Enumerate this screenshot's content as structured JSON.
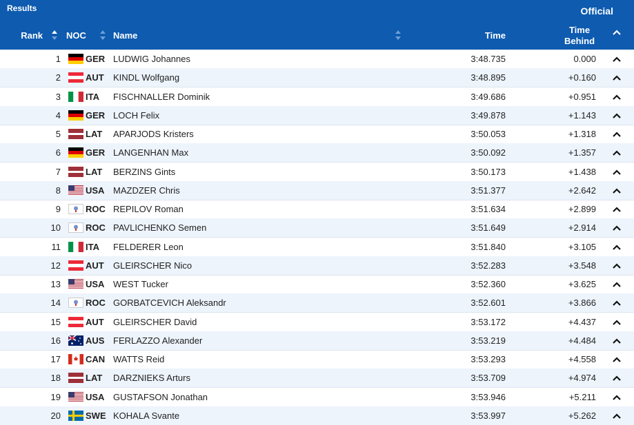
{
  "header": {
    "title": "Results",
    "status": "Official",
    "columns": {
      "rank": "Rank",
      "noc": "NOC",
      "name": "Name",
      "time": "Time",
      "time_behind": "Time Behind"
    }
  },
  "table": {
    "rows": [
      {
        "rank": "1",
        "noc": "GER",
        "name": "LUDWIG Johannes",
        "time": "3:48.735",
        "time_behind": "0.000"
      },
      {
        "rank": "2",
        "noc": "AUT",
        "name": "KINDL Wolfgang",
        "time": "3:48.895",
        "time_behind": "+0.160"
      },
      {
        "rank": "3",
        "noc": "ITA",
        "name": "FISCHNALLER Dominik",
        "time": "3:49.686",
        "time_behind": "+0.951"
      },
      {
        "rank": "4",
        "noc": "GER",
        "name": "LOCH Felix",
        "time": "3:49.878",
        "time_behind": "+1.143"
      },
      {
        "rank": "5",
        "noc": "LAT",
        "name": "APARJODS Kristers",
        "time": "3:50.053",
        "time_behind": "+1.318"
      },
      {
        "rank": "6",
        "noc": "GER",
        "name": "LANGENHAN Max",
        "time": "3:50.092",
        "time_behind": "+1.357"
      },
      {
        "rank": "7",
        "noc": "LAT",
        "name": "BERZINS Gints",
        "time": "3:50.173",
        "time_behind": "+1.438"
      },
      {
        "rank": "8",
        "noc": "USA",
        "name": "MAZDZER Chris",
        "time": "3:51.377",
        "time_behind": "+2.642"
      },
      {
        "rank": "9",
        "noc": "ROC",
        "name": "REPILOV Roman",
        "time": "3:51.634",
        "time_behind": "+2.899"
      },
      {
        "rank": "10",
        "noc": "ROC",
        "name": "PAVLICHENKO Semen",
        "time": "3:51.649",
        "time_behind": "+2.914"
      },
      {
        "rank": "11",
        "noc": "ITA",
        "name": "FELDERER Leon",
        "time": "3:51.840",
        "time_behind": "+3.105"
      },
      {
        "rank": "12",
        "noc": "AUT",
        "name": "GLEIRSCHER Nico",
        "time": "3:52.283",
        "time_behind": "+3.548"
      },
      {
        "rank": "13",
        "noc": "USA",
        "name": "WEST Tucker",
        "time": "3:52.360",
        "time_behind": "+3.625"
      },
      {
        "rank": "14",
        "noc": "ROC",
        "name": "GORBATCEVICH Aleksandr",
        "time": "3:52.601",
        "time_behind": "+3.866"
      },
      {
        "rank": "15",
        "noc": "AUT",
        "name": "GLEIRSCHER David",
        "time": "3:53.172",
        "time_behind": "+4.437"
      },
      {
        "rank": "16",
        "noc": "AUS",
        "name": "FERLAZZO Alexander",
        "time": "3:53.219",
        "time_behind": "+4.484"
      },
      {
        "rank": "17",
        "noc": "CAN",
        "name": "WATTS Reid",
        "time": "3:53.293",
        "time_behind": "+4.558"
      },
      {
        "rank": "18",
        "noc": "LAT",
        "name": "DARZNIEKS Arturs",
        "time": "3:53.709",
        "time_behind": "+4.974"
      },
      {
        "rank": "19",
        "noc": "USA",
        "name": "GUSTAFSON Jonathan",
        "time": "3:53.946",
        "time_behind": "+5.211"
      },
      {
        "rank": "20",
        "noc": "SWE",
        "name": "KOHALA Svante",
        "time": "3:53.997",
        "time_behind": "+5.262"
      }
    ]
  }
}
